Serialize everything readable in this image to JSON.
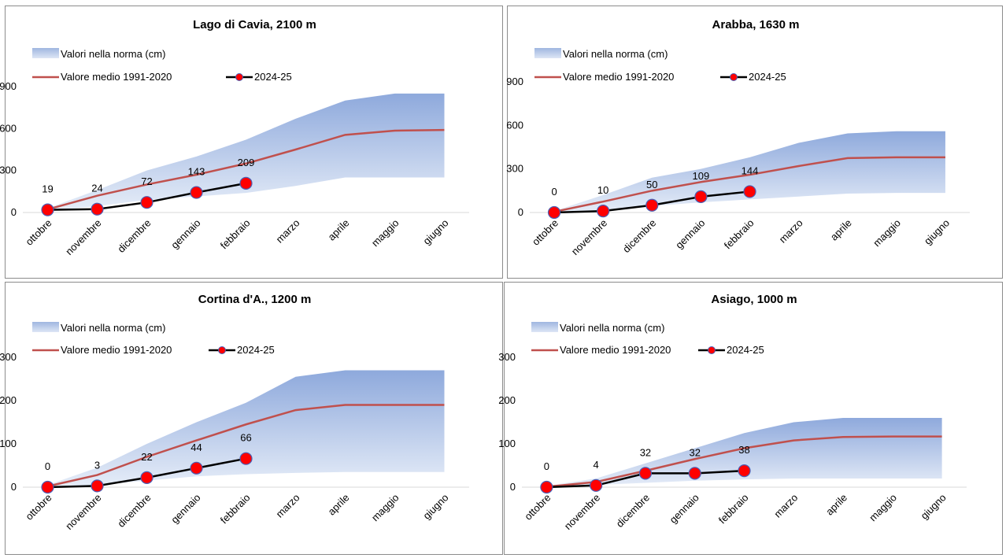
{
  "chart_data": [
    {
      "type": "line",
      "title": "Lago di Cavia,  2100 m",
      "categories": [
        "ottobre",
        "novembre",
        "dicembre",
        "gennaio",
        "febbraio",
        "marzo",
        "aprile",
        "maggio",
        "giugno"
      ],
      "ylim": [
        0,
        900
      ],
      "yticks": [
        0,
        300,
        600,
        900
      ],
      "legend": {
        "band": "Valori nella norma (cm)",
        "mean": "Valore medio 1991-2020",
        "current": "2024-25"
      },
      "band_low": [
        15,
        45,
        90,
        115,
        140,
        190,
        250,
        250,
        250
      ],
      "band_high": [
        30,
        160,
        300,
        400,
        520,
        670,
        800,
        850,
        850
      ],
      "mean": [
        22,
        120,
        200,
        270,
        350,
        450,
        555,
        585,
        590
      ],
      "current": [
        19,
        24,
        72,
        143,
        209
      ],
      "current_labels": [
        "19",
        "24",
        "72",
        "143",
        "209"
      ],
      "colors": {
        "mean": "#c0504d",
        "current": "#000000",
        "marker": "#ff0000",
        "marker_edge": "#4a5fb5"
      }
    },
    {
      "type": "line",
      "title": "Arabba,  1630 m",
      "categories": [
        "ottobre",
        "novembre",
        "dicembre",
        "gennaio",
        "febbraio",
        "marzo",
        "aprile",
        "maggio",
        "giugno"
      ],
      "ylim": [
        0,
        900
      ],
      "yticks": [
        0,
        300,
        600,
        900
      ],
      "legend": {
        "band": "Valori nella norma (cm)",
        "mean": "Valore medio 1991-2020",
        "current": "2024-25"
      },
      "band_low": [
        0,
        15,
        45,
        70,
        90,
        110,
        130,
        135,
        135
      ],
      "band_high": [
        10,
        120,
        240,
        300,
        380,
        480,
        545,
        560,
        560
      ],
      "mean": [
        5,
        75,
        150,
        210,
        260,
        320,
        375,
        380,
        380
      ],
      "current": [
        0,
        10,
        50,
        109,
        144
      ],
      "current_labels": [
        "0",
        "10",
        "50",
        "109",
        "144"
      ],
      "colors": {
        "mean": "#c0504d",
        "current": "#000000",
        "marker": "#ff0000",
        "marker_edge": "#4a5fb5"
      }
    },
    {
      "type": "line",
      "title": "Cortina d'A.,  1200 m",
      "categories": [
        "ottobre",
        "novembre",
        "dicembre",
        "gennaio",
        "febbraio",
        "marzo",
        "aprile",
        "maggio",
        "giugno"
      ],
      "ylim": [
        0,
        300
      ],
      "yticks": [
        0,
        100,
        200,
        300
      ],
      "legend": {
        "band": "Valori nella norma (cm)",
        "mean": "Valore medio 1991-2020",
        "current": "2024-25"
      },
      "band_low": [
        0,
        5,
        15,
        25,
        30,
        33,
        35,
        35,
        35
      ],
      "band_high": [
        5,
        45,
        100,
        150,
        195,
        255,
        270,
        270,
        270
      ],
      "mean": [
        2,
        28,
        70,
        108,
        145,
        178,
        190,
        190,
        190
      ],
      "current": [
        0,
        3,
        22,
        44,
        66
      ],
      "current_labels": [
        "0",
        "3",
        "22",
        "44",
        "66"
      ],
      "colors": {
        "mean": "#c0504d",
        "current": "#000000",
        "marker": "#ff0000",
        "marker_edge": "#4a5fb5"
      }
    },
    {
      "type": "line",
      "title": "Asiago,  1000 m",
      "categories": [
        "ottobre",
        "novembre",
        "dicembre",
        "gennaio",
        "febbraio",
        "marzo",
        "aprile",
        "maggio",
        "giugno"
      ],
      "ylim": [
        0,
        300
      ],
      "yticks": [
        0,
        100,
        200,
        300
      ],
      "legend": {
        "band": "Valori nella norma (cm)",
        "mean": "Valore medio 1991-2020",
        "current": "2024-25"
      },
      "band_low": [
        0,
        5,
        10,
        15,
        18,
        20,
        20,
        20,
        20
      ],
      "band_high": [
        3,
        20,
        55,
        90,
        125,
        150,
        160,
        160,
        160
      ],
      "mean": [
        1,
        12,
        38,
        65,
        90,
        108,
        116,
        117,
        117
      ],
      "current": [
        0,
        4,
        32,
        32,
        38
      ],
      "current_labels": [
        "0",
        "4",
        "32",
        "32",
        "38"
      ],
      "colors": {
        "mean": "#c0504d",
        "current": "#000000",
        "marker": "#ff0000",
        "marker_edge": "#4a5fb5"
      }
    }
  ]
}
